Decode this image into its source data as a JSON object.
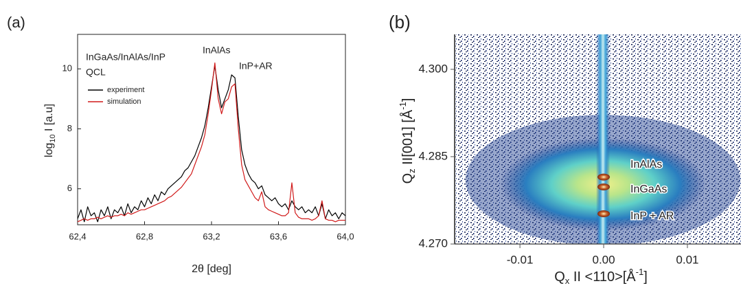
{
  "chart_data": [
    {
      "type": "line",
      "panel_label": "(a)",
      "y_label": {
        "main": "log",
        "sub": "10",
        "rest": " I [a.u]"
      },
      "x_label": "2θ [deg]",
      "annotations": [
        "InGaAs/InAlAs/InP",
        "QCL",
        "InAlAs",
        "InP+AR"
      ],
      "xlim": [
        62.4,
        64.0
      ],
      "xticks": [
        {
          "value": 62.4,
          "label": "62,4"
        },
        {
          "value": 62.8,
          "label": "62,8"
        },
        {
          "value": 63.2,
          "label": "63,2"
        },
        {
          "value": 63.6,
          "label": "63,6"
        },
        {
          "value": 64.0,
          "label": "64,0"
        }
      ],
      "ylim": [
        4.8,
        11.15
      ],
      "yticks": [
        6,
        8,
        10
      ],
      "legend": "upper left",
      "x": [
        62.4,
        62.42,
        62.44,
        62.46,
        62.48,
        62.5,
        62.52,
        62.54,
        62.56,
        62.58,
        62.6,
        62.62,
        62.64,
        62.66,
        62.68,
        62.7,
        62.72,
        62.74,
        62.76,
        62.78,
        62.8,
        62.82,
        62.84,
        62.86,
        62.88,
        62.9,
        62.92,
        62.94,
        62.96,
        62.98,
        63.0,
        63.02,
        63.04,
        63.06,
        63.08,
        63.1,
        63.12,
        63.14,
        63.16,
        63.18,
        63.2,
        63.22,
        63.24,
        63.26,
        63.28,
        63.3,
        63.32,
        63.34,
        63.36,
        63.38,
        63.4,
        63.42,
        63.44,
        63.46,
        63.48,
        63.5,
        63.52,
        63.54,
        63.56,
        63.58,
        63.6,
        63.62,
        63.64,
        63.66,
        63.68,
        63.7,
        63.72,
        63.74,
        63.76,
        63.78,
        63.8,
        63.82,
        63.84,
        63.86,
        63.88,
        63.9,
        63.92,
        63.94,
        63.96,
        63.98,
        64.0
      ],
      "series": [
        {
          "name": "experiment",
          "color": "#000000",
          "values": [
            5.0,
            5.3,
            4.9,
            5.4,
            5.1,
            5.2,
            4.9,
            5.3,
            5.1,
            5.4,
            5.0,
            5.3,
            5.2,
            5.4,
            5.1,
            5.5,
            5.2,
            5.4,
            5.3,
            5.6,
            5.4,
            5.7,
            5.5,
            5.8,
            5.6,
            5.9,
            5.8,
            6.0,
            6.1,
            6.2,
            6.3,
            6.4,
            6.6,
            6.7,
            6.9,
            7.1,
            7.4,
            7.7,
            8.1,
            8.7,
            9.4,
            10.1,
            9.3,
            8.7,
            9.0,
            9.3,
            9.8,
            9.7,
            8.4,
            7.3,
            6.8,
            6.5,
            6.3,
            6.2,
            6.0,
            6.1,
            5.8,
            5.7,
            5.6,
            5.7,
            5.5,
            5.4,
            5.5,
            5.3,
            5.6,
            5.4,
            5.3,
            5.4,
            5.2,
            5.3,
            5.2,
            5.4,
            5.1,
            5.5,
            5.0,
            5.3,
            5.1,
            5.2,
            5.0,
            5.2,
            5.1
          ]
        },
        {
          "name": "simulation",
          "color": "#d01818",
          "values": [
            4.9,
            4.95,
            5.0,
            4.95,
            5.0,
            5.0,
            5.05,
            5.0,
            5.05,
            5.1,
            5.05,
            5.1,
            5.1,
            5.15,
            5.1,
            5.2,
            5.15,
            5.2,
            5.25,
            5.3,
            5.3,
            5.35,
            5.4,
            5.45,
            5.5,
            5.55,
            5.6,
            5.7,
            5.75,
            5.85,
            5.95,
            6.05,
            6.2,
            6.35,
            6.5,
            6.8,
            7.1,
            7.4,
            7.8,
            8.5,
            9.3,
            10.2,
            9.0,
            8.5,
            8.9,
            9.0,
            9.4,
            9.5,
            8.0,
            6.8,
            6.3,
            6.1,
            5.9,
            5.7,
            5.6,
            5.9,
            5.4,
            5.3,
            5.25,
            5.2,
            5.15,
            5.1,
            5.1,
            5.2,
            6.2,
            5.2,
            5.05,
            5.0,
            5.0,
            5.0,
            4.95,
            5.0,
            5.1,
            5.6,
            5.0,
            4.95,
            4.95,
            4.9,
            4.95,
            4.95,
            4.95
          ]
        }
      ]
    },
    {
      "type": "heatmap",
      "panel_label": "(b)",
      "y_label": {
        "main": "Q",
        "sub": "z",
        "rest": " II[001] [Å",
        "sup": "-1",
        "end": "]"
      },
      "x_label": {
        "main": "Q",
        "sub": "x",
        "rest": " II <110>[Å",
        "sup": "-1",
        "end": "]"
      },
      "xlim": [
        -0.0178,
        0.0164
      ],
      "xticks": [
        -0.01,
        {
          "value": 0,
          "label": "0.00"
        },
        0.01
      ],
      "ylim": [
        4.27,
        4.306
      ],
      "yticks": [
        {
          "value": 4.27,
          "label": "4.270"
        },
        {
          "value": 4.285,
          "label": "4.285"
        },
        {
          "value": 4.3,
          "label": "4.300"
        }
      ],
      "peaks": [
        {
          "label": "InAlAs",
          "qx": 0,
          "qz": 4.2815
        },
        {
          "label": "InGaAs",
          "qx": 0,
          "qz": 4.2798
        },
        {
          "label": "InP + AR",
          "qx": 0,
          "qz": 4.2752
        }
      ]
    }
  ]
}
